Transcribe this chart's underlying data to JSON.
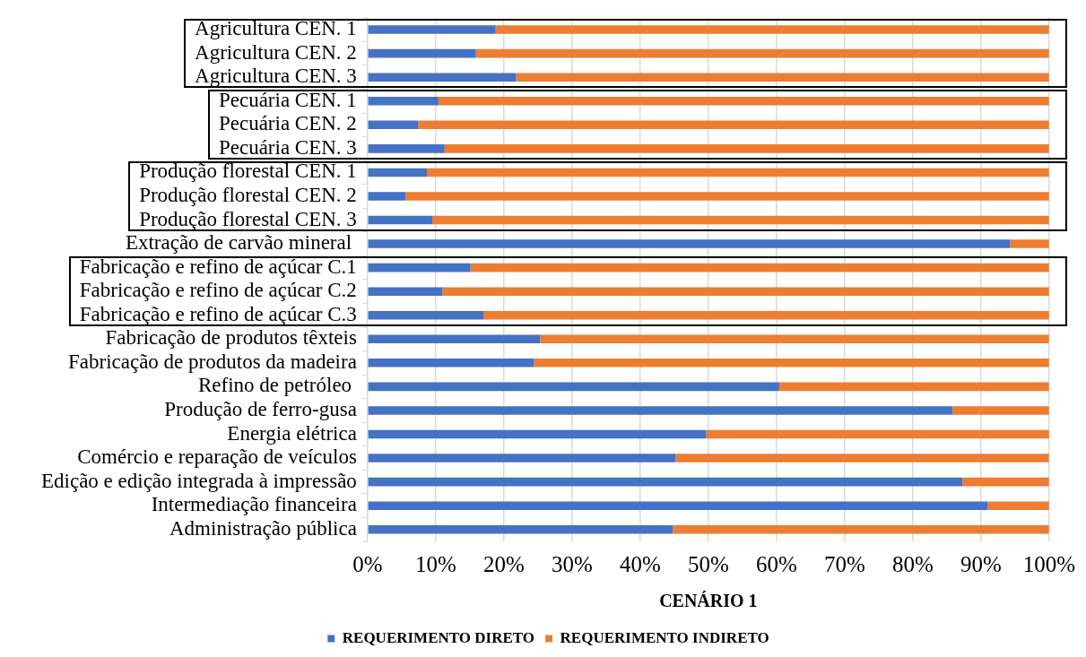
{
  "chart_data": {
    "type": "bar",
    "orientation": "horizontal",
    "stacked": true,
    "xlabel": "CENÁRIO 1",
    "categories": [
      "Agricultura CEN. 1",
      "Agricultura CEN. 2",
      "Agricultura CEN. 3",
      "Pecuária CEN. 1",
      "Pecuária CEN. 2",
      "Pecuária CEN. 3",
      "Produção florestal CEN. 1",
      "Produção florestal CEN. 2",
      "Produção florestal CEN. 3",
      "Extração de carvão mineral ",
      "Fabricação e refino de açúcar C.1",
      "Fabricação e refino de açúcar C.2",
      "Fabricação e refino de açúcar C.3",
      "Fabricação de produtos têxteis",
      "Fabricação de produtos da madeira",
      "Refino de petróleo ",
      "Produção de ferro-gusa",
      "Energia elétrica",
      "Comércio e reparação de veículos",
      "Edição e edição integrada à impressão",
      "Intermediação financeira",
      "Administração pública"
    ],
    "series": [
      {
        "name": "REQUERIMENTO DIRETO",
        "color": "#4472c4",
        "values": [
          18.8,
          15.9,
          21.8,
          10.4,
          7.4,
          11.3,
          8.7,
          5.6,
          9.5,
          94.3,
          15.1,
          11.0,
          17.0,
          25.3,
          24.4,
          60.4,
          85.8,
          49.7,
          45.2,
          87.3,
          91.0,
          44.8
        ]
      },
      {
        "name": "REQUERIMENTO INDIRETO",
        "color": "#ed7d31",
        "values": [
          81.2,
          84.1,
          78.2,
          89.6,
          92.6,
          88.7,
          91.3,
          94.4,
          90.5,
          5.7,
          84.9,
          89.0,
          83.0,
          74.7,
          75.6,
          39.6,
          14.2,
          50.3,
          54.8,
          12.7,
          9.0,
          55.2
        ]
      }
    ],
    "xlim": [
      0,
      100
    ],
    "xticks": [
      {
        "value": 0,
        "label": "0%"
      },
      {
        "value": 10,
        "label": "10%"
      },
      {
        "value": 20,
        "label": "20%"
      },
      {
        "value": 30,
        "label": "30%"
      },
      {
        "value": 40,
        "label": "40%"
      },
      {
        "value": 50,
        "label": "50%"
      },
      {
        "value": 60,
        "label": "60%"
      },
      {
        "value": 70,
        "label": "70%"
      },
      {
        "value": 80,
        "label": "80%"
      },
      {
        "value": 90,
        "label": "90%"
      },
      {
        "value": 100,
        "label": "100%"
      }
    ],
    "grid": "x",
    "legend": "bottom"
  }
}
